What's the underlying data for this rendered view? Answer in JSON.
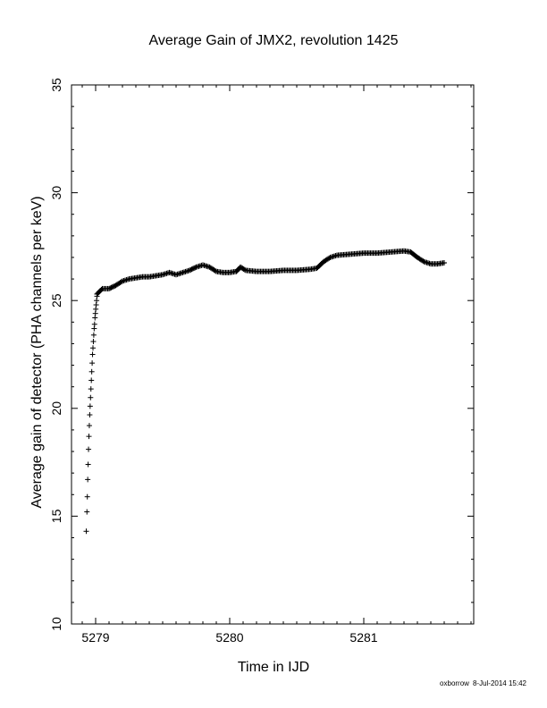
{
  "chart_data": {
    "type": "scatter",
    "title": "Average Gain of JMX2, revolution 1425",
    "xlabel": "Time in IJD",
    "ylabel": "Average gain of detector (PHA channels per keV)",
    "xlim": [
      5278.82,
      5281.82
    ],
    "ylim": [
      10,
      35
    ],
    "xticks": [
      5279,
      5280,
      5281
    ],
    "yticks": [
      10,
      15,
      20,
      25,
      30,
      35
    ],
    "marker": "plus",
    "grid": false,
    "ramp_points": {
      "x": [
        5278.93,
        5278.935,
        5278.938,
        5278.941,
        5278.944,
        5278.947,
        5278.95,
        5278.953,
        5278.956,
        5278.959,
        5278.962,
        5278.965,
        5278.968,
        5278.971,
        5278.974,
        5278.977,
        5278.98,
        5278.983,
        5278.986,
        5278.989,
        5278.992,
        5278.995,
        5278.998,
        5279.001,
        5279.004,
        5279.007,
        5279.01
      ],
      "y": [
        14.3,
        15.2,
        15.9,
        16.7,
        17.4,
        18.1,
        18.7,
        19.2,
        19.7,
        20.1,
        20.5,
        20.9,
        21.3,
        21.7,
        22.1,
        22.5,
        22.8,
        23.1,
        23.4,
        23.7,
        23.9,
        24.2,
        24.4,
        24.6,
        24.8,
        25.0,
        25.2
      ]
    },
    "dense_curve": {
      "x": [
        5279.01,
        5279.05,
        5279.1,
        5279.15,
        5279.2,
        5279.25,
        5279.3,
        5279.35,
        5279.4,
        5279.45,
        5279.5,
        5279.55,
        5279.6,
        5279.65,
        5279.7,
        5279.75,
        5279.8,
        5279.85,
        5279.9,
        5279.95,
        5280.0,
        5280.05,
        5280.08,
        5280.12,
        5280.2,
        5280.3,
        5280.4,
        5280.5,
        5280.6,
        5280.65,
        5280.7,
        5280.75,
        5280.8,
        5280.9,
        5281.0,
        5281.1,
        5281.2,
        5281.3,
        5281.35,
        5281.4,
        5281.45,
        5281.5,
        5281.55,
        5281.6
      ],
      "y": [
        25.3,
        25.55,
        25.55,
        25.7,
        25.9,
        26.0,
        26.05,
        26.1,
        26.1,
        26.15,
        26.2,
        26.3,
        26.2,
        26.3,
        26.4,
        26.55,
        26.65,
        26.55,
        26.35,
        26.3,
        26.3,
        26.35,
        26.55,
        26.4,
        26.35,
        26.35,
        26.4,
        26.4,
        26.45,
        26.5,
        26.8,
        27.0,
        27.1,
        27.15,
        27.2,
        27.2,
        27.25,
        27.3,
        27.25,
        27.0,
        26.8,
        26.7,
        26.7,
        26.75
      ]
    }
  },
  "footer": {
    "user": "oxborrow",
    "date": "8-Jul-2014 15:42"
  }
}
